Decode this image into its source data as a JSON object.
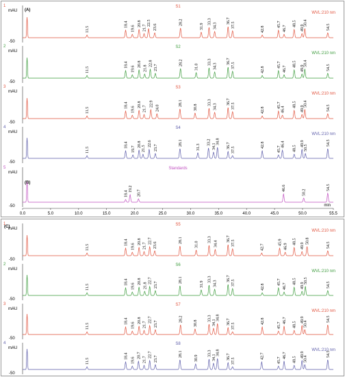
{
  "panels": [
    {
      "label": "(A)",
      "traces": [
        {
          "index": "1",
          "name": "S1",
          "unit": "mAU",
          "wvl": "WVL:210 nm",
          "ymin": "-50",
          "color": "#e0503a",
          "peaks": [
            "11.5",
            "18.4",
            "19.6",
            "20.8",
            "21.7",
            "22.5",
            "23.6",
            "28.2",
            "31.9",
            "33.3",
            "34.3",
            "36.7",
            "37.5",
            "42.8",
            "45.7",
            "46.7",
            "48.5",
            "49.9",
            "50.4",
            "54.5"
          ]
        },
        {
          "index": "2",
          "name": "S2",
          "unit": "mAU",
          "wvl": "WVL:210 nm",
          "ymin": "-50",
          "color": "#3a9a3a",
          "peaks": [
            "11.5",
            "18.4",
            "19.6",
            "20.8",
            "21.8",
            "22.8",
            "23.7",
            "28.2",
            "31.0",
            "33.3",
            "34.3",
            "36.7",
            "37.5",
            "42.8",
            "45.7",
            "46.7",
            "48.5",
            "49.9",
            "50.4",
            "54.5"
          ]
        },
        {
          "index": "3",
          "name": "S3",
          "unit": "mAU",
          "wvl": "WVL:210 nm",
          "ymin": "-50",
          "color": "#e0503a",
          "peaks": [
            "11.5",
            "18.4",
            "19.6",
            "20.8",
            "21.7",
            "22.9",
            "24.0",
            "28.1",
            "30.8",
            "33.3",
            "34.3",
            "36.7",
            "37.5",
            "42.8",
            "45.7",
            "46.4",
            "48.5",
            "49.9",
            "50.4",
            "54.5"
          ]
        },
        {
          "index": "4",
          "name": "S4",
          "unit": "mAU",
          "wvl": "WVL:210 nm",
          "ymin": "-50",
          "color": "#5a5aa8",
          "peaks": [
            "11.5",
            "18.4",
            "19.7",
            "20.8",
            "21.5",
            "22.6",
            "23.7",
            "28.1",
            "31.3",
            "33.2",
            "34.1",
            "34.8",
            "36.7",
            "37.5",
            "42.8",
            "45.7",
            "46.4",
            "48.5",
            "49.9",
            "50.5",
            "54.5"
          ]
        }
      ]
    },
    {
      "label": "(B)",
      "traces": [
        {
          "index": "5",
          "name": "Standards",
          "unit": "mAU",
          "ymin": "-50",
          "color": "#c050c0",
          "peaks": [
            "18.4",
            "19.2",
            "20.7",
            "46.6",
            "50.2",
            "54.5"
          ]
        }
      ],
      "xticks": [
        "0.0",
        "5.0",
        "10.0",
        "15.0",
        "20.0",
        "25.0",
        "30.0",
        "35.0",
        "40.0",
        "45.0",
        "50.0",
        "55.5"
      ],
      "xunit": "min"
    },
    {
      "label": "(C)",
      "traces": [
        {
          "index": "1",
          "name": "S5",
          "unit": "mAU",
          "wvl": "WVL:210 nm",
          "ymin": "-50",
          "color": "#e0503a",
          "peaks": [
            "11.5",
            "18.4",
            "19.6",
            "20.8",
            "21.7",
            "22.7",
            "23.6",
            "28.1",
            "31.0",
            "33.3",
            "34.4",
            "36.7",
            "37.5",
            "42.7",
            "45.9",
            "46.9",
            "48.5",
            "49.9",
            "50.8",
            "54.5"
          ]
        },
        {
          "index": "2",
          "name": "S6",
          "unit": "mAU",
          "wvl": "WVL:210 nm",
          "ymin": "-50",
          "color": "#3a9a3a",
          "peaks": [
            "11.5",
            "18.4",
            "19.6",
            "20.8",
            "21.8",
            "22.7",
            "23.7",
            "28.1",
            "31.9",
            "33.3",
            "34.3",
            "36.7",
            "37.5",
            "42.8",
            "45.7",
            "46.7",
            "48.5",
            "49.9",
            "50.5",
            "54.5"
          ]
        },
        {
          "index": "3",
          "name": "S7",
          "unit": "mAU",
          "wvl": "WVL:210 nm",
          "ymin": "-50",
          "color": "#e0503a",
          "peaks": [
            "11.5",
            "18.4",
            "19.6",
            "20.8",
            "21.7",
            "22.7",
            "23.7",
            "28.2",
            "30.8",
            "33.3",
            "34.1",
            "34.8",
            "36.7",
            "37.5",
            "42.8",
            "45.7",
            "46.7",
            "48.5",
            "49.9",
            "50.4",
            "54.5"
          ]
        },
        {
          "index": "4",
          "name": "S8",
          "unit": "mAU",
          "wvl": "WVL:210 nm",
          "ymin": "-50",
          "color": "#5a5aa8",
          "peaks": [
            "11.5",
            "18.4",
            "19.6",
            "20.7",
            "21.7",
            "22.7",
            "23.7",
            "28.1",
            "30.9",
            "33.3",
            "34.1",
            "34.8",
            "36.7",
            "37.5",
            "42.7",
            "45.7",
            "46.7",
            "48.5",
            "49.9",
            "50.4",
            "54.5"
          ]
        }
      ]
    }
  ]
}
